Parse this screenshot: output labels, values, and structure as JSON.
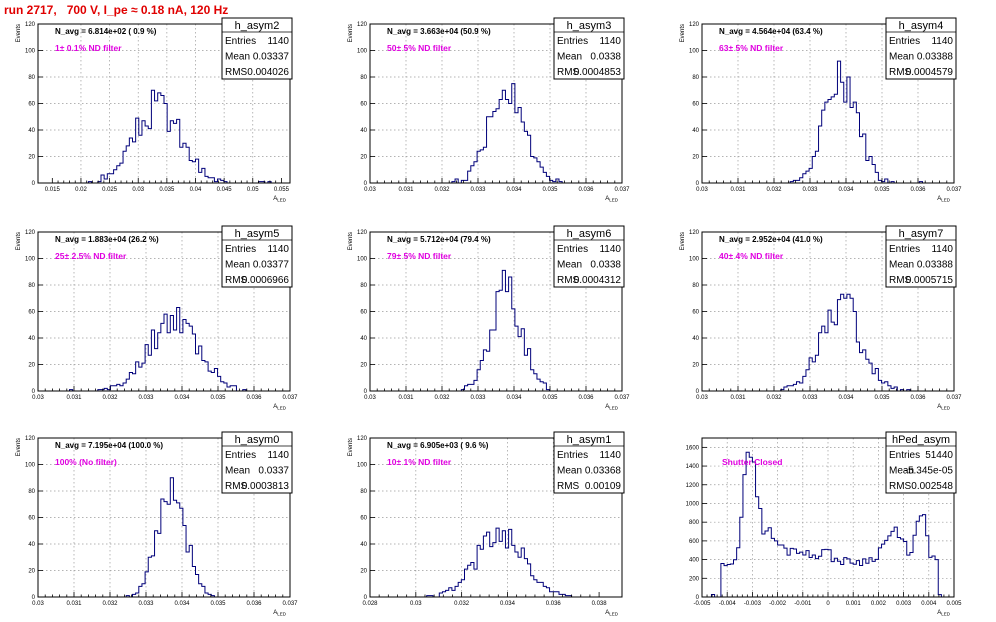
{
  "page_title": "run 2717,   700 V, I_pe ≈ 0.18 nA, 120 Hz",
  "chart_data": [
    {
      "type": "histogram",
      "stats_title": "h_asym2",
      "entries": "1140",
      "mean": "0.03337",
      "rms": "0.004026",
      "n_avg_label": "N_avg = 6.814e+02 ( 0.9 %)",
      "filter_label": "1± 0.1% ND filter",
      "ylabel": "Events",
      "xlabel": "A_LED",
      "xlim": [
        0.0125,
        0.0565
      ],
      "ylim": [
        0,
        120
      ],
      "xticks": [
        "0.015",
        "0.02",
        "0.025",
        "0.03",
        "0.035",
        "0.04",
        "0.045",
        "0.05",
        "0.055"
      ],
      "yticks": [
        "0",
        "20",
        "40",
        "60",
        "80",
        "100",
        "120"
      ],
      "center": 0.0334,
      "sigma": 0.004,
      "peak": 58,
      "seed": 3
    },
    {
      "type": "histogram",
      "stats_title": "h_asym3",
      "entries": "1140",
      "mean": "0.0338",
      "rms": "0.0004853",
      "n_avg_label": "N_avg = 3.663e+04 (50.9 %)",
      "filter_label": "50± 5% ND filter",
      "ylabel": "Events",
      "xlabel": "A_LED",
      "xlim": [
        0.03,
        0.037
      ],
      "ylim": [
        0,
        120
      ],
      "xticks": [
        "0.03",
        "0.031",
        "0.032",
        "0.033",
        "0.034",
        "0.035",
        "0.036",
        "0.037"
      ],
      "yticks": [
        "0",
        "20",
        "40",
        "60",
        "80",
        "100",
        "120"
      ],
      "center": 0.0338,
      "sigma": 0.00048,
      "peak": 78,
      "seed": 5
    },
    {
      "type": "histogram",
      "stats_title": "h_asym4",
      "entries": "1140",
      "mean": "0.03388",
      "rms": "0.0004579",
      "n_avg_label": "N_avg = 4.564e+04 (63.4 %)",
      "filter_label": "63± 5% ND filter",
      "ylabel": "Events",
      "xlabel": "A_LED",
      "xlim": [
        0.03,
        0.037
      ],
      "ylim": [
        0,
        120
      ],
      "xticks": [
        "0.03",
        "0.031",
        "0.032",
        "0.033",
        "0.034",
        "0.035",
        "0.036",
        "0.037"
      ],
      "yticks": [
        "0",
        "20",
        "40",
        "60",
        "80",
        "100",
        "120"
      ],
      "center": 0.03388,
      "sigma": 0.00045,
      "peak": 84,
      "seed": 7
    },
    {
      "type": "histogram",
      "stats_title": "h_asym5",
      "entries": "1140",
      "mean": "0.03377",
      "rms": "0.0006966",
      "n_avg_label": "N_avg = 1.883e+04 (26.2 %)",
      "filter_label": "25± 2.5% ND filter",
      "ylabel": "Events",
      "xlabel": "A_LED",
      "xlim": [
        0.03,
        0.037
      ],
      "ylim": [
        0,
        120
      ],
      "xticks": [
        "0.03",
        "0.031",
        "0.032",
        "0.033",
        "0.034",
        "0.035",
        "0.036",
        "0.037"
      ],
      "yticks": [
        "0",
        "20",
        "40",
        "60",
        "80",
        "100",
        "120"
      ],
      "center": 0.03377,
      "sigma": 0.00068,
      "peak": 56,
      "seed": 11
    },
    {
      "type": "histogram",
      "stats_title": "h_asym6",
      "entries": "1140",
      "mean": "0.0338",
      "rms": "0.0004312",
      "n_avg_label": "N_avg = 5.712e+04 (79.4 %)",
      "filter_label": "79± 5% ND filter",
      "ylabel": "Events",
      "xlabel": "A_LED",
      "xlim": [
        0.03,
        0.037
      ],
      "ylim": [
        0,
        120
      ],
      "xticks": [
        "0.03",
        "0.031",
        "0.032",
        "0.033",
        "0.034",
        "0.035",
        "0.036",
        "0.037"
      ],
      "yticks": [
        "0",
        "20",
        "40",
        "60",
        "80",
        "100",
        "120"
      ],
      "center": 0.0338,
      "sigma": 0.00042,
      "peak": 76,
      "seed": 13
    },
    {
      "type": "histogram",
      "stats_title": "h_asym7",
      "entries": "1140",
      "mean": "0.03388",
      "rms": "0.0005715",
      "n_avg_label": "N_avg = 2.952e+04 (41.0 %)",
      "filter_label": "40± 4% ND filter",
      "ylabel": "Events",
      "xlabel": "A_LED",
      "xlim": [
        0.03,
        0.037
      ],
      "ylim": [
        0,
        120
      ],
      "xticks": [
        "0.03",
        "0.031",
        "0.032",
        "0.033",
        "0.034",
        "0.035",
        "0.036",
        "0.037"
      ],
      "yticks": [
        "0",
        "20",
        "40",
        "60",
        "80",
        "100",
        "120"
      ],
      "center": 0.03388,
      "sigma": 0.00056,
      "peak": 64,
      "seed": 17
    },
    {
      "type": "histogram",
      "stats_title": "h_asym0",
      "entries": "1140",
      "mean": "0.0337",
      "rms": "0.0003813",
      "n_avg_label": "N_avg = 7.195e+04 (100.0 %)",
      "filter_label": "100% (No filter)",
      "ylabel": "Events",
      "xlabel": "A_LED",
      "xlim": [
        0.03,
        0.037
      ],
      "ylim": [
        0,
        120
      ],
      "xticks": [
        "0.03",
        "0.031",
        "0.032",
        "0.033",
        "0.034",
        "0.035",
        "0.036",
        "0.037"
      ],
      "yticks": [
        "0",
        "20",
        "40",
        "60",
        "80",
        "100",
        "120"
      ],
      "center": 0.0337,
      "sigma": 0.00038,
      "peak": 88,
      "seed": 19
    },
    {
      "type": "histogram",
      "stats_title": "h_asym1",
      "entries": "1140",
      "mean": "0.03368",
      "rms": "0.00109",
      "n_avg_label": "N_avg = 6.905e+03 ( 9.6 %)",
      "filter_label": "10± 1% ND filter",
      "ylabel": "Events",
      "xlabel": "A_LED",
      "xlim": [
        0.028,
        0.039
      ],
      "ylim": [
        0,
        120
      ],
      "xticks": [
        "0.028",
        "0.03",
        "0.032",
        "0.034",
        "0.036",
        "0.038"
      ],
      "yticks": [
        "0",
        "20",
        "40",
        "60",
        "80",
        "100",
        "120"
      ],
      "center": 0.03368,
      "sigma": 0.00105,
      "peak": 46,
      "seed": 23
    },
    {
      "type": "histogram",
      "stats_title": "hPed_asym",
      "entries": "51440",
      "mean": "-5.345e-05",
      "rms": "0.002548",
      "n_avg_label": "",
      "filter_label": "Shutter Closed",
      "ylabel": "",
      "xlabel": "A_LED",
      "xlim": [
        -0.005,
        0.005
      ],
      "ylim": [
        0,
        1700
      ],
      "xticks": [
        "-0.005",
        "-0.004",
        "-0.003",
        "-0.002",
        "-0.001",
        "0",
        "0.001",
        "0.002",
        "0.003",
        "0.004",
        "0.005"
      ],
      "yticks": [
        "0",
        "200",
        "400",
        "600",
        "800",
        "1000",
        "1200",
        "1400",
        "1600"
      ],
      "seed": 29
    }
  ]
}
